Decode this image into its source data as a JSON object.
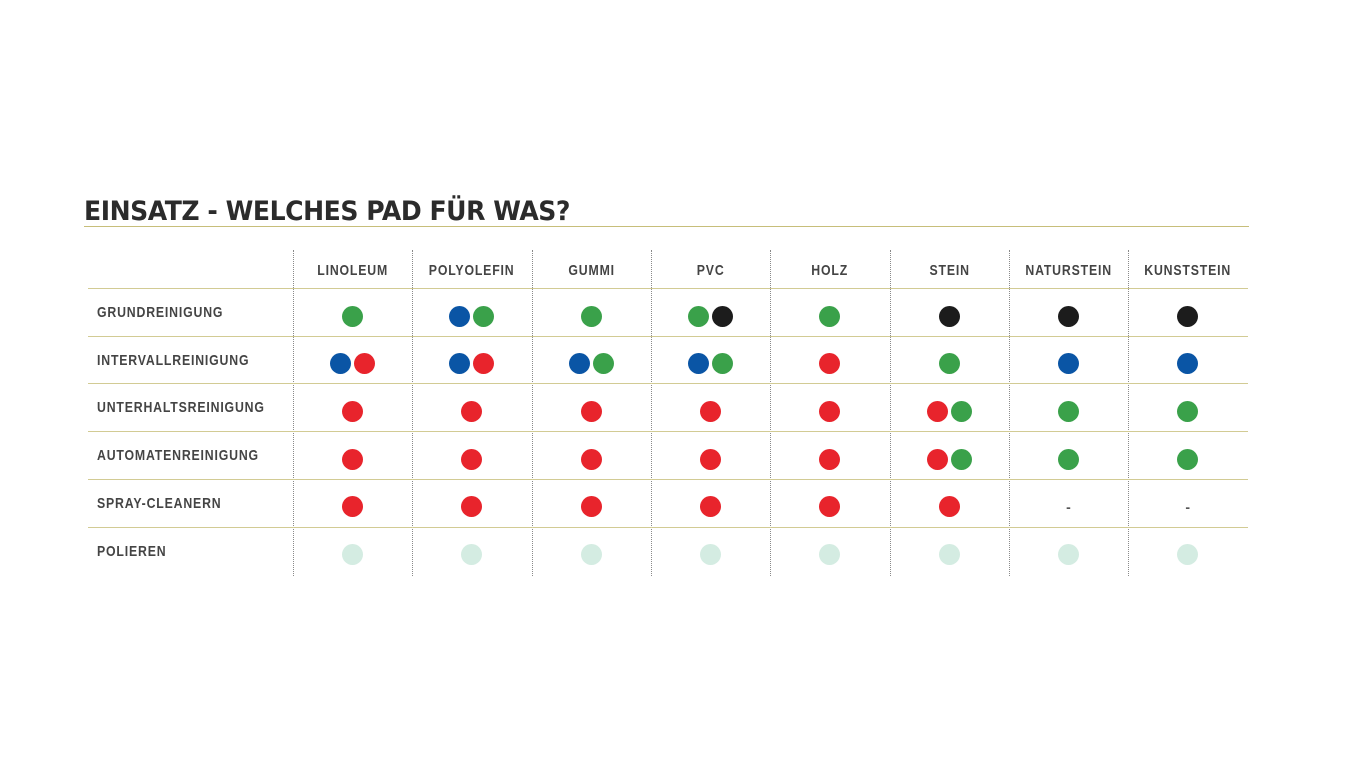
{
  "chart_data": {
    "type": "table",
    "title": "EINSATZ - WELCHES PAD FÜR WAS?",
    "columns": [
      "LINOLEUM",
      "POLYOLEFIN",
      "GUMMI",
      "PVC",
      "HOLZ",
      "STEIN",
      "NATURSTEIN",
      "KUNSTSTEIN"
    ],
    "rows": [
      {
        "label": "GRUNDREINIGUNG",
        "cells": [
          [
            "green"
          ],
          [
            "blue",
            "green"
          ],
          [
            "green"
          ],
          [
            "green",
            "black"
          ],
          [
            "green"
          ],
          [
            "black"
          ],
          [
            "black"
          ],
          [
            "black"
          ]
        ]
      },
      {
        "label": "INTERVALLREINIGUNG",
        "cells": [
          [
            "blue",
            "red"
          ],
          [
            "blue",
            "red"
          ],
          [
            "blue",
            "green"
          ],
          [
            "blue",
            "green"
          ],
          [
            "red"
          ],
          [
            "green"
          ],
          [
            "blue"
          ],
          [
            "blue"
          ]
        ]
      },
      {
        "label": "UNTERHALTSREINIGUNG",
        "cells": [
          [
            "red"
          ],
          [
            "red"
          ],
          [
            "red"
          ],
          [
            "red"
          ],
          [
            "red"
          ],
          [
            "red",
            "green"
          ],
          [
            "green"
          ],
          [
            "green"
          ]
        ]
      },
      {
        "label": "AUTOMATENREINIGUNG",
        "cells": [
          [
            "red"
          ],
          [
            "red"
          ],
          [
            "red"
          ],
          [
            "red"
          ],
          [
            "red"
          ],
          [
            "red",
            "green"
          ],
          [
            "green"
          ],
          [
            "green"
          ]
        ]
      },
      {
        "label": "SPRAY-CLEANERN",
        "cells": [
          [
            "red"
          ],
          [
            "red"
          ],
          [
            "red"
          ],
          [
            "red"
          ],
          [
            "red"
          ],
          [
            "red"
          ],
          [],
          []
        ]
      },
      {
        "label": "POLIEREN",
        "cells": [
          [
            "mint"
          ],
          [
            "mint"
          ],
          [
            "mint"
          ],
          [
            "mint"
          ],
          [
            "mint"
          ],
          [
            "mint"
          ],
          [
            "mint"
          ],
          [
            "mint"
          ]
        ]
      }
    ],
    "empty_marker": "-",
    "colors": {
      "green": "#3aa14a",
      "blue": "#0a55a5",
      "red": "#e8242c",
      "black": "#1c1c1c",
      "mint": "#d4ece2"
    }
  }
}
